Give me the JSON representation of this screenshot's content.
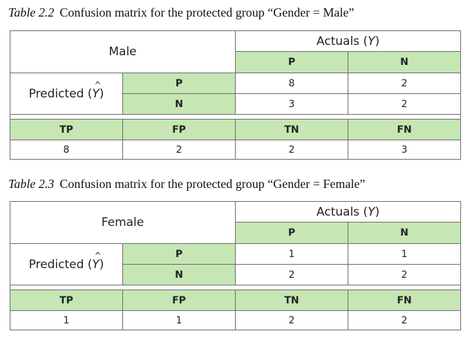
{
  "tables": [
    {
      "caption_num": "Table 2.2",
      "caption_text": "Confusion matrix for the protected group “Gender = Male”",
      "group": "Male",
      "actuals_label": "Actuals (",
      "actuals_symbol": "Y",
      "actuals_close": ")",
      "predicted_label": "Predicted (",
      "predicted_symbol": "Y",
      "predicted_close": ")",
      "col_p": "P",
      "col_n": "N",
      "row_p": "P",
      "row_n": "N",
      "cells": {
        "pp": "8",
        "pn": "2",
        "np": "3",
        "nn": "2"
      },
      "metrics_headers": [
        "TP",
        "FP",
        "TN",
        "FN"
      ],
      "metrics_values": [
        "8",
        "2",
        "2",
        "3"
      ]
    },
    {
      "caption_num": "Table 2.3",
      "caption_text": "Confusion matrix for the protected group “Gender = Female”",
      "group": "Female",
      "actuals_label": "Actuals (",
      "actuals_symbol": "Y",
      "actuals_close": ")",
      "predicted_label": "Predicted (",
      "predicted_symbol": "Y",
      "predicted_close": ")",
      "col_p": "P",
      "col_n": "N",
      "row_p": "P",
      "row_n": "N",
      "cells": {
        "pp": "1",
        "pn": "1",
        "np": "2",
        "nn": "2"
      },
      "metrics_headers": [
        "TP",
        "FP",
        "TN",
        "FN"
      ],
      "metrics_values": [
        "1",
        "1",
        "2",
        "2"
      ]
    }
  ],
  "colors": {
    "header_green": "#c6e6b3",
    "border": "#6a6a6a"
  }
}
